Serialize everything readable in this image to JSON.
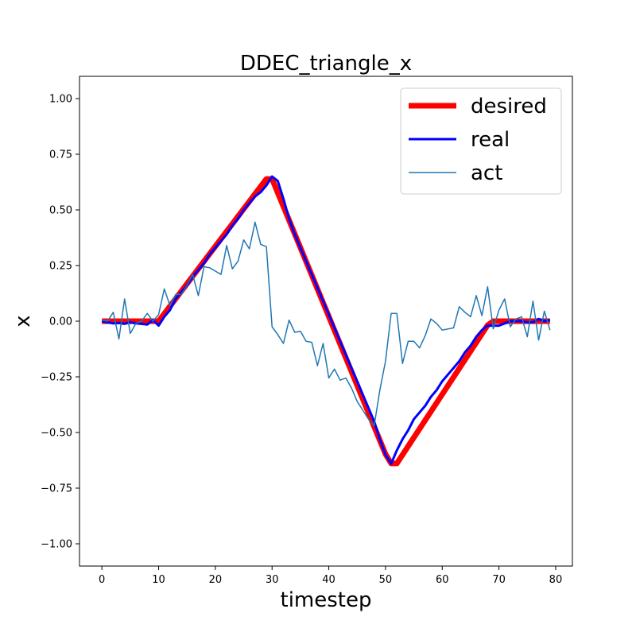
{
  "chart_data": {
    "type": "line",
    "title": "DDEC_triangle_x",
    "xlabel": "timestep",
    "ylabel": "x",
    "xlim": [
      -3.95,
      82.95
    ],
    "ylim": [
      -1.1,
      1.1
    ],
    "xticks": [
      0,
      10,
      20,
      30,
      40,
      50,
      60,
      70,
      80
    ],
    "yticks": [
      -1.0,
      -0.75,
      -0.5,
      -0.25,
      0.0,
      0.25,
      0.5,
      0.75,
      1.0
    ],
    "xtick_labels": [
      "0",
      "10",
      "20",
      "30",
      "40",
      "50",
      "60",
      "70",
      "80"
    ],
    "ytick_labels": [
      "−1.00",
      "−0.75",
      "−0.50",
      "−0.25",
      "0.00",
      "0.25",
      "0.50",
      "0.75",
      "1.00"
    ],
    "grid": false,
    "legend_position": "upper-right",
    "x": [
      0,
      1,
      2,
      3,
      4,
      5,
      6,
      7,
      8,
      9,
      10,
      11,
      12,
      13,
      14,
      15,
      16,
      17,
      18,
      19,
      20,
      21,
      22,
      23,
      24,
      25,
      26,
      27,
      28,
      29,
      30,
      31,
      32,
      33,
      34,
      35,
      36,
      37,
      38,
      39,
      40,
      41,
      42,
      43,
      44,
      45,
      46,
      47,
      48,
      49,
      50,
      51,
      52,
      53,
      54,
      55,
      56,
      57,
      58,
      59,
      60,
      61,
      62,
      63,
      64,
      65,
      66,
      67,
      68,
      69,
      70,
      71,
      72,
      73,
      74,
      75,
      76,
      77,
      78,
      79
    ],
    "series": [
      {
        "name": "desired",
        "color": "#ff0000",
        "linewidth": 7,
        "values": [
          0,
          0,
          0,
          0,
          0,
          0,
          0,
          0,
          0,
          0,
          0,
          0.0336,
          0.0673,
          0.1009,
          0.1345,
          0.1682,
          0.2018,
          0.2354,
          0.2691,
          0.3027,
          0.3363,
          0.37,
          0.4036,
          0.4372,
          0.4709,
          0.5045,
          0.5381,
          0.5718,
          0.6054,
          0.639,
          0.639,
          0.5772,
          0.5154,
          0.4536,
          0.3918,
          0.33,
          0.2682,
          0.2064,
          0.1446,
          0.0828,
          0.021,
          -0.0408,
          -0.1026,
          -0.1644,
          -0.2262,
          -0.288,
          -0.3498,
          -0.4116,
          -0.4734,
          -0.5352,
          -0.597,
          -0.639,
          -0.639,
          -0.6002,
          -0.5614,
          -0.5226,
          -0.4838,
          -0.445,
          -0.4062,
          -0.3674,
          -0.3286,
          -0.2898,
          -0.251,
          -0.2122,
          -0.1734,
          -0.1346,
          -0.0958,
          -0.057,
          -0.0182,
          0,
          0,
          0,
          0,
          0,
          0,
          0,
          0,
          0,
          0,
          0
        ]
      },
      {
        "name": "real",
        "color": "#0000ff",
        "linewidth": 3,
        "values": [
          0,
          -0.005,
          -0.01,
          -0.008,
          -0.012,
          -0.005,
          -0.01,
          -0.012,
          -0.015,
          0.005,
          -0.02,
          0.02,
          0.05,
          0.1,
          0.13,
          0.16,
          0.2,
          0.23,
          0.26,
          0.3,
          0.33,
          0.36,
          0.39,
          0.43,
          0.46,
          0.5,
          0.53,
          0.56,
          0.58,
          0.61,
          0.65,
          0.63,
          0.55,
          0.46,
          0.39,
          0.33,
          0.27,
          0.21,
          0.15,
          0.09,
          0.03,
          -0.03,
          -0.09,
          -0.15,
          -0.21,
          -0.27,
          -0.33,
          -0.39,
          -0.45,
          -0.53,
          -0.6,
          -0.64,
          -0.58,
          -0.53,
          -0.49,
          -0.44,
          -0.41,
          -0.38,
          -0.34,
          -0.31,
          -0.27,
          -0.24,
          -0.21,
          -0.18,
          -0.14,
          -0.11,
          -0.07,
          -0.04,
          -0.02,
          -0.02,
          -0.02,
          -0.01,
          0,
          0,
          0,
          -0.005,
          -0.005,
          0.01,
          0,
          0.005
        ]
      },
      {
        "name": "act",
        "color": "#1f77b4",
        "linewidth": 1.5,
        "values": [
          0.005,
          0,
          0.04,
          -0.08,
          0.1,
          -0.055,
          -0.01,
          0,
          0.035,
          0,
          0.03,
          0.145,
          0.07,
          0.12,
          0.12,
          0.16,
          0.21,
          0.115,
          0.245,
          0.24,
          0.225,
          0.21,
          0.34,
          0.235,
          0.27,
          0.365,
          0.325,
          0.445,
          0.345,
          0.335,
          -0.025,
          -0.06,
          -0.1,
          0.005,
          -0.05,
          -0.045,
          -0.09,
          -0.095,
          -0.2,
          -0.1,
          -0.255,
          -0.215,
          -0.265,
          -0.255,
          -0.3,
          -0.36,
          -0.4,
          -0.44,
          -0.47,
          -0.31,
          -0.18,
          0.035,
          0.035,
          -0.19,
          -0.09,
          -0.09,
          -0.12,
          -0.065,
          0.01,
          -0.01,
          -0.04,
          -0.035,
          -0.03,
          0.065,
          0.04,
          0.02,
          0.115,
          0.025,
          0.155,
          -0.035,
          0.05,
          0.1,
          -0.025,
          0.01,
          0.02,
          -0.07,
          0.09,
          -0.085,
          0.045,
          -0.04
        ]
      }
    ]
  }
}
